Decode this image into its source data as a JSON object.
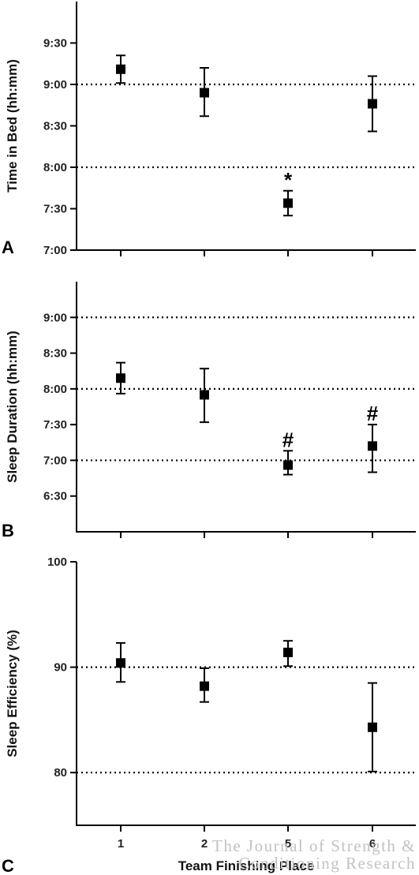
{
  "shared_x": {
    "label": "Team Finishing Place",
    "categories": [
      "1",
      "2",
      "5",
      "6"
    ]
  },
  "watermark": {
    "line1": "The Journal of Strength &",
    "line2": "Conditioning Research"
  },
  "chart_data": [
    {
      "type": "scatter",
      "panel": "A",
      "ylabel": "Time in Bed (hh:mm)",
      "xlabel": "",
      "categories": [
        "1",
        "2",
        "5",
        "6"
      ],
      "y_ticks": [
        {
          "value": 420,
          "label": "7:00"
        },
        {
          "value": 450,
          "label": "7:30"
        },
        {
          "value": 480,
          "label": "8:00"
        },
        {
          "value": 510,
          "label": "8:30"
        },
        {
          "value": 540,
          "label": "9:00"
        },
        {
          "value": 570,
          "label": "9:30"
        }
      ],
      "ylim": [
        420,
        600
      ],
      "y_units": "minutes",
      "reference_lines": [
        540,
        480
      ],
      "points": [
        {
          "x": "1",
          "mean": 551,
          "err_low": 541,
          "err_high": 561,
          "mark": ""
        },
        {
          "x": "2",
          "mean": 534,
          "err_low": 517,
          "err_high": 552,
          "mark": ""
        },
        {
          "x": "5",
          "mean": 454,
          "err_low": 445,
          "err_high": 463,
          "mark": "*"
        },
        {
          "x": "6",
          "mean": 526,
          "err_low": 506,
          "err_high": 546,
          "mark": ""
        }
      ]
    },
    {
      "type": "scatter",
      "panel": "B",
      "ylabel": "Sleep Duration (hh:mm)",
      "xlabel": "",
      "categories": [
        "1",
        "2",
        "5",
        "6"
      ],
      "y_ticks": [
        {
          "value": 390,
          "label": "6:30"
        },
        {
          "value": 420,
          "label": "7:00"
        },
        {
          "value": 450,
          "label": "7:30"
        },
        {
          "value": 480,
          "label": "8:00"
        },
        {
          "value": 510,
          "label": "8:30"
        },
        {
          "value": 540,
          "label": "9:00"
        }
      ],
      "ylim": [
        360,
        570
      ],
      "y_units": "minutes",
      "reference_lines": [
        540,
        480,
        420
      ],
      "points": [
        {
          "x": "1",
          "mean": 489,
          "err_low": 476,
          "err_high": 502,
          "mark": ""
        },
        {
          "x": "2",
          "mean": 475,
          "err_low": 452,
          "err_high": 497,
          "mark": ""
        },
        {
          "x": "5",
          "mean": 416,
          "err_low": 408,
          "err_high": 428,
          "mark": "#"
        },
        {
          "x": "6",
          "mean": 432,
          "err_low": 410,
          "err_high": 450,
          "mark": "#"
        }
      ]
    },
    {
      "type": "scatter",
      "panel": "C",
      "ylabel": "Sleep Efficiency (%)",
      "xlabel": "Team Finishing Place",
      "categories": [
        "1",
        "2",
        "5",
        "6"
      ],
      "y_ticks": [
        {
          "value": 80,
          "label": "80"
        },
        {
          "value": 90,
          "label": "90"
        },
        {
          "value": 100,
          "label": "100"
        }
      ],
      "ylim": [
        75,
        100
      ],
      "y_units": "%",
      "reference_lines": [
        90,
        80
      ],
      "points": [
        {
          "x": "1",
          "mean": 90.4,
          "err_low": 88.6,
          "err_high": 92.3,
          "mark": ""
        },
        {
          "x": "2",
          "mean": 88.2,
          "err_low": 86.7,
          "err_high": 89.9,
          "mark": ""
        },
        {
          "x": "5",
          "mean": 91.4,
          "err_low": 90.1,
          "err_high": 92.5,
          "mark": ""
        },
        {
          "x": "6",
          "mean": 84.3,
          "err_low": 80.1,
          "err_high": 88.5,
          "mark": ""
        }
      ]
    }
  ]
}
